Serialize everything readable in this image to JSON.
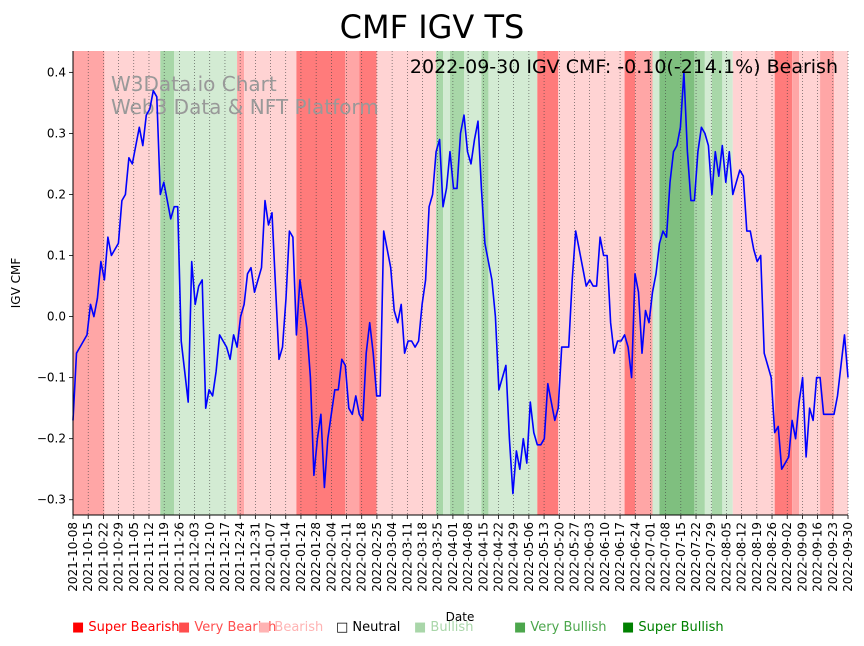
{
  "chart_data": {
    "type": "line",
    "title": "CMF IGV TS",
    "annotation": "2022-09-30 IGV CMF: -0.10(-214.1%) Bearish",
    "watermark": [
      "W3Data.io Chart",
      "Web3 Data & NFT Platform"
    ],
    "xlabel": "Date",
    "ylabel": "IGV CMF",
    "ylim": [
      -0.325,
      0.435
    ],
    "yticks": [
      -0.3,
      -0.2,
      -0.1,
      0.0,
      0.1,
      0.2,
      0.3,
      0.4
    ],
    "ytick_labels": [
      "−0.3",
      "−0.2",
      "−0.1",
      "0.0",
      "0.1",
      "0.2",
      "0.3",
      "0.4"
    ],
    "xticks": [
      "2021-10-08",
      "2021-10-15",
      "2021-10-22",
      "2021-10-29",
      "2021-11-05",
      "2021-11-12",
      "2021-11-19",
      "2021-11-26",
      "2021-12-03",
      "2021-12-10",
      "2021-12-17",
      "2021-12-24",
      "2021-12-31",
      "2022-01-07",
      "2022-01-14",
      "2022-01-21",
      "2022-01-28",
      "2022-02-04",
      "2022-02-11",
      "2022-02-18",
      "2022-02-25",
      "2022-03-04",
      "2022-03-11",
      "2022-03-18",
      "2022-03-25",
      "2022-04-01",
      "2022-04-08",
      "2022-04-15",
      "2022-04-22",
      "2022-04-29",
      "2022-05-06",
      "2022-05-13",
      "2022-05-20",
      "2022-05-27",
      "2022-06-03",
      "2022-06-10",
      "2022-06-17",
      "2022-06-24",
      "2022-07-01",
      "2022-07-08",
      "2022-07-15",
      "2022-07-22",
      "2022-07-29",
      "2022-08-05",
      "2022-08-12",
      "2022-08-19",
      "2022-08-26",
      "2022-09-02",
      "2022-09-09",
      "2022-09-16",
      "2022-09-23",
      "2022-09-30"
    ],
    "series": [
      {
        "name": "IGV CMF",
        "color": "#0000ff",
        "points": [
          [
            0,
            -0.17
          ],
          [
            1,
            -0.06
          ],
          [
            2,
            -0.05
          ],
          [
            3,
            -0.04
          ],
          [
            4,
            -0.03
          ],
          [
            5,
            0.02
          ],
          [
            6,
            0.0
          ],
          [
            7,
            0.03
          ],
          [
            8,
            0.09
          ],
          [
            9,
            0.06
          ],
          [
            10,
            0.13
          ],
          [
            11,
            0.1
          ],
          [
            12,
            0.11
          ],
          [
            13,
            0.12
          ],
          [
            14,
            0.19
          ],
          [
            15,
            0.2
          ],
          [
            16,
            0.26
          ],
          [
            17,
            0.25
          ],
          [
            18,
            0.28
          ],
          [
            19,
            0.31
          ],
          [
            20,
            0.28
          ],
          [
            21,
            0.33
          ],
          [
            22,
            0.34
          ],
          [
            23,
            0.37
          ],
          [
            24,
            0.36
          ],
          [
            25,
            0.2
          ],
          [
            26,
            0.22
          ],
          [
            27,
            0.19
          ],
          [
            28,
            0.16
          ],
          [
            29,
            0.18
          ],
          [
            30,
            0.18
          ],
          [
            31,
            -0.04
          ],
          [
            32,
            -0.09
          ],
          [
            33,
            -0.14
          ],
          [
            34,
            0.09
          ],
          [
            35,
            0.02
          ],
          [
            36,
            0.05
          ],
          [
            37,
            0.06
          ],
          [
            38,
            -0.15
          ],
          [
            39,
            -0.12
          ],
          [
            40,
            -0.13
          ],
          [
            41,
            -0.09
          ],
          [
            42,
            -0.03
          ],
          [
            43,
            -0.04
          ],
          [
            44,
            -0.05
          ],
          [
            45,
            -0.07
          ],
          [
            46,
            -0.03
          ],
          [
            47,
            -0.05
          ],
          [
            48,
            0.0
          ],
          [
            49,
            0.02
          ],
          [
            50,
            0.07
          ],
          [
            51,
            0.08
          ],
          [
            52,
            0.04
          ],
          [
            53,
            0.06
          ],
          [
            54,
            0.08
          ],
          [
            55,
            0.19
          ],
          [
            56,
            0.15
          ],
          [
            57,
            0.17
          ],
          [
            58,
            0.05
          ],
          [
            59,
            -0.07
          ],
          [
            60,
            -0.05
          ],
          [
            61,
            0.03
          ],
          [
            62,
            0.14
          ],
          [
            63,
            0.13
          ],
          [
            64,
            -0.03
          ],
          [
            65,
            0.06
          ],
          [
            66,
            0.02
          ],
          [
            67,
            -0.02
          ],
          [
            68,
            -0.1
          ],
          [
            69,
            -0.26
          ],
          [
            70,
            -0.2
          ],
          [
            71,
            -0.16
          ],
          [
            72,
            -0.28
          ],
          [
            73,
            -0.2
          ],
          [
            74,
            -0.16
          ],
          [
            75,
            -0.12
          ],
          [
            76,
            -0.12
          ],
          [
            77,
            -0.07
          ],
          [
            78,
            -0.08
          ],
          [
            79,
            -0.15
          ],
          [
            80,
            -0.16
          ],
          [
            81,
            -0.13
          ],
          [
            82,
            -0.16
          ],
          [
            83,
            -0.17
          ],
          [
            84,
            -0.06
          ],
          [
            85,
            -0.01
          ],
          [
            86,
            -0.06
          ],
          [
            87,
            -0.13
          ],
          [
            88,
            -0.13
          ],
          [
            89,
            0.14
          ],
          [
            90,
            0.11
          ],
          [
            91,
            0.08
          ],
          [
            92,
            0.01
          ],
          [
            93,
            -0.01
          ],
          [
            94,
            0.02
          ],
          [
            95,
            -0.06
          ],
          [
            96,
            -0.04
          ],
          [
            97,
            -0.04
          ],
          [
            98,
            -0.05
          ],
          [
            99,
            -0.04
          ],
          [
            100,
            0.02
          ],
          [
            101,
            0.06
          ],
          [
            102,
            0.18
          ],
          [
            103,
            0.2
          ],
          [
            104,
            0.27
          ],
          [
            105,
            0.29
          ],
          [
            106,
            0.18
          ],
          [
            107,
            0.21
          ],
          [
            108,
            0.27
          ],
          [
            109,
            0.21
          ],
          [
            110,
            0.21
          ],
          [
            111,
            0.3
          ],
          [
            112,
            0.33
          ],
          [
            113,
            0.27
          ],
          [
            114,
            0.25
          ],
          [
            115,
            0.29
          ],
          [
            116,
            0.32
          ],
          [
            117,
            0.21
          ],
          [
            118,
            0.12
          ],
          [
            119,
            0.09
          ],
          [
            120,
            0.06
          ],
          [
            121,
            0.0
          ],
          [
            122,
            -0.12
          ],
          [
            123,
            -0.1
          ],
          [
            124,
            -0.08
          ],
          [
            125,
            -0.2
          ],
          [
            126,
            -0.29
          ],
          [
            127,
            -0.22
          ],
          [
            128,
            -0.25
          ],
          [
            129,
            -0.2
          ],
          [
            130,
            -0.24
          ],
          [
            131,
            -0.14
          ],
          [
            132,
            -0.19
          ],
          [
            133,
            -0.21
          ],
          [
            134,
            -0.21
          ],
          [
            135,
            -0.2
          ],
          [
            136,
            -0.11
          ],
          [
            137,
            -0.14
          ],
          [
            138,
            -0.17
          ],
          [
            139,
            -0.15
          ],
          [
            140,
            -0.05
          ],
          [
            141,
            -0.05
          ],
          [
            142,
            -0.05
          ],
          [
            143,
            0.06
          ],
          [
            144,
            0.14
          ],
          [
            145,
            0.11
          ],
          [
            146,
            0.08
          ],
          [
            147,
            0.05
          ],
          [
            148,
            0.06
          ],
          [
            149,
            0.05
          ],
          [
            150,
            0.05
          ],
          [
            151,
            0.13
          ],
          [
            152,
            0.1
          ],
          [
            153,
            0.1
          ],
          [
            154,
            -0.01
          ],
          [
            155,
            -0.06
          ],
          [
            156,
            -0.04
          ],
          [
            157,
            -0.04
          ],
          [
            158,
            -0.03
          ],
          [
            159,
            -0.05
          ],
          [
            160,
            -0.1
          ],
          [
            161,
            0.07
          ],
          [
            162,
            0.04
          ],
          [
            163,
            -0.06
          ],
          [
            164,
            0.01
          ],
          [
            165,
            -0.01
          ],
          [
            166,
            0.04
          ],
          [
            167,
            0.07
          ],
          [
            168,
            0.12
          ],
          [
            169,
            0.14
          ],
          [
            170,
            0.13
          ],
          [
            171,
            0.22
          ],
          [
            172,
            0.27
          ],
          [
            173,
            0.28
          ],
          [
            174,
            0.31
          ],
          [
            175,
            0.4
          ],
          [
            176,
            0.27
          ],
          [
            177,
            0.19
          ],
          [
            178,
            0.19
          ],
          [
            179,
            0.27
          ],
          [
            180,
            0.31
          ],
          [
            181,
            0.3
          ],
          [
            182,
            0.28
          ],
          [
            183,
            0.2
          ],
          [
            184,
            0.27
          ],
          [
            185,
            0.23
          ],
          [
            186,
            0.28
          ],
          [
            187,
            0.22
          ],
          [
            188,
            0.27
          ],
          [
            189,
            0.2
          ],
          [
            190,
            0.22
          ],
          [
            191,
            0.24
          ],
          [
            192,
            0.23
          ],
          [
            193,
            0.14
          ],
          [
            194,
            0.14
          ],
          [
            195,
            0.11
          ],
          [
            196,
            0.09
          ],
          [
            197,
            0.1
          ],
          [
            198,
            -0.06
          ],
          [
            199,
            -0.08
          ],
          [
            200,
            -0.1
          ],
          [
            201,
            -0.19
          ],
          [
            202,
            -0.18
          ],
          [
            203,
            -0.25
          ],
          [
            204,
            -0.24
          ],
          [
            205,
            -0.23
          ],
          [
            206,
            -0.17
          ],
          [
            207,
            -0.2
          ],
          [
            208,
            -0.14
          ],
          [
            209,
            -0.1
          ],
          [
            210,
            -0.23
          ],
          [
            211,
            -0.15
          ],
          [
            212,
            -0.17
          ],
          [
            213,
            -0.1
          ],
          [
            214,
            -0.1
          ],
          [
            215,
            -0.16
          ],
          [
            216,
            -0.16
          ],
          [
            217,
            -0.16
          ],
          [
            218,
            -0.16
          ],
          [
            219,
            -0.13
          ],
          [
            220,
            -0.08
          ],
          [
            221,
            -0.03
          ],
          [
            222,
            -0.1
          ]
        ]
      }
    ],
    "regimes": [
      {
        "start": 0,
        "end": 9,
        "cls": "vbear"
      },
      {
        "start": 9,
        "end": 25,
        "cls": "bear"
      },
      {
        "start": 25,
        "end": 29,
        "cls": "vbull"
      },
      {
        "start": 29,
        "end": 47,
        "cls": "bull"
      },
      {
        "start": 47,
        "end": 49,
        "cls": "vbear"
      },
      {
        "start": 49,
        "end": 64,
        "cls": "bear"
      },
      {
        "start": 64,
        "end": 78,
        "cls": "sbear"
      },
      {
        "start": 78,
        "end": 82,
        "cls": "vbear"
      },
      {
        "start": 82,
        "end": 87,
        "cls": "sbear"
      },
      {
        "start": 87,
        "end": 104,
        "cls": "bear"
      },
      {
        "start": 104,
        "end": 106,
        "cls": "vbull"
      },
      {
        "start": 106,
        "end": 108,
        "cls": "bull"
      },
      {
        "start": 108,
        "end": 112,
        "cls": "vbull"
      },
      {
        "start": 112,
        "end": 117,
        "cls": "bull"
      },
      {
        "start": 117,
        "end": 119,
        "cls": "vbull"
      },
      {
        "start": 119,
        "end": 133,
        "cls": "bull"
      },
      {
        "start": 133,
        "end": 139,
        "cls": "sbear"
      },
      {
        "start": 139,
        "end": 158,
        "cls": "bear"
      },
      {
        "start": 158,
        "end": 161,
        "cls": "sbear"
      },
      {
        "start": 161,
        "end": 166,
        "cls": "vbear"
      },
      {
        "start": 166,
        "end": 168,
        "cls": "bull"
      },
      {
        "start": 168,
        "end": 178,
        "cls": "sbull"
      },
      {
        "start": 178,
        "end": 181,
        "cls": "vbull"
      },
      {
        "start": 181,
        "end": 183,
        "cls": "bull"
      },
      {
        "start": 183,
        "end": 186,
        "cls": "vbull"
      },
      {
        "start": 186,
        "end": 189,
        "cls": "bull"
      },
      {
        "start": 189,
        "end": 201,
        "cls": "bear"
      },
      {
        "start": 201,
        "end": 206,
        "cls": "sbear"
      },
      {
        "start": 206,
        "end": 208,
        "cls": "vbear"
      },
      {
        "start": 208,
        "end": 214,
        "cls": "bear"
      },
      {
        "start": 214,
        "end": 218,
        "cls": "vbear"
      },
      {
        "start": 218,
        "end": 222,
        "cls": "bear"
      }
    ],
    "regime_colors": {
      "sbear": "#ff7b7b",
      "vbear": "#ffa6a6",
      "bear": "#ffd3d3",
      "bull": "#d3ebd3",
      "vbull": "#a8d7a8",
      "sbull": "#7fbf7f"
    },
    "legend": [
      {
        "label": "Super Bearish",
        "color": "#ff0000"
      },
      {
        "label": "Very Bearish",
        "color": "#ff4d4d"
      },
      {
        "label": "Bearish",
        "color": "#ffb3b3"
      },
      {
        "label": "Neutral",
        "color": "#000000"
      },
      {
        "label": "Bullish",
        "color": "#a9d6a9"
      },
      {
        "label": "Very Bullish",
        "color": "#4ca64c"
      },
      {
        "label": "Super Bullish",
        "color": "#008000"
      }
    ]
  }
}
